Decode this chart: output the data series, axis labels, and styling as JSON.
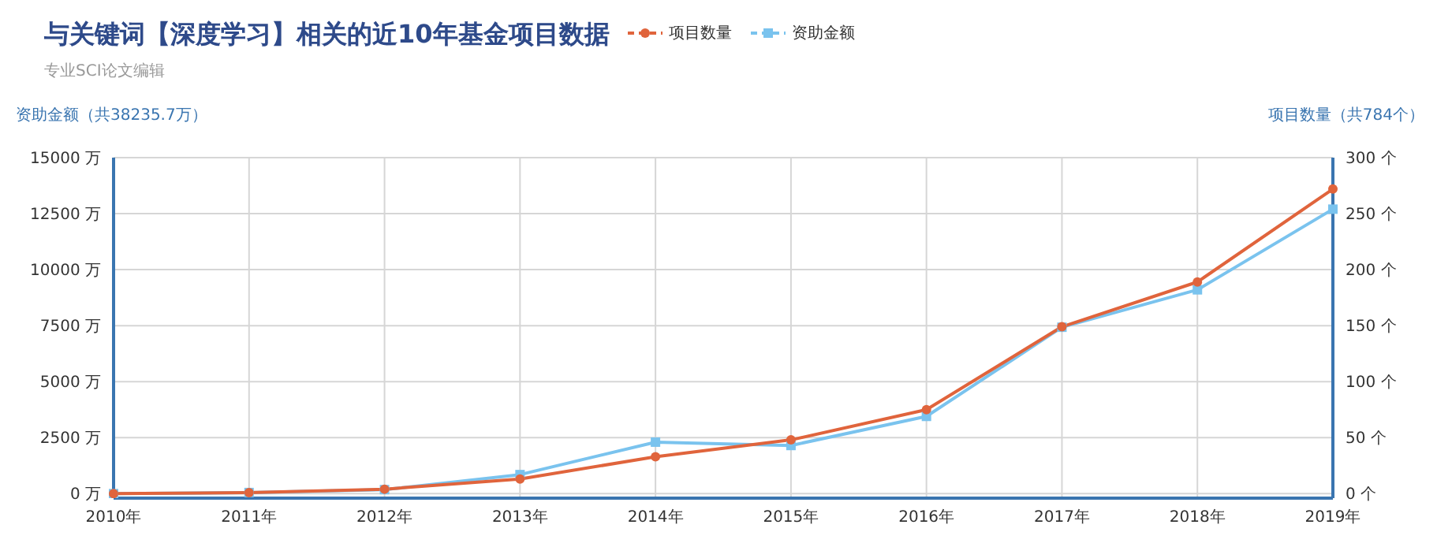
{
  "chart_data": {
    "type": "line",
    "title": "与关键词【深度学习】相关的近10年基金项目数据",
    "subtitle": "专业SCI论文编辑",
    "ylabel": "资助金额（共38235.7万）",
    "y2label": "项目数量（共784个）",
    "categories": [
      "2010年",
      "2011年",
      "2012年",
      "2013年",
      "2014年",
      "2015年",
      "2016年",
      "2017年",
      "2018年",
      "2019年"
    ],
    "series": [
      {
        "name": "项目数量",
        "color": "#e0643c",
        "axis": "y2",
        "marker": "circle",
        "values": [
          0,
          1,
          4,
          13,
          33,
          48,
          75,
          149,
          189,
          272
        ]
      },
      {
        "name": "资助金额",
        "color": "#7ac3ee",
        "marker": "square",
        "values": [
          0,
          50,
          180,
          850,
          2300,
          2150,
          3450,
          7430,
          9100,
          12700
        ]
      }
    ],
    "ylim": [
      -200,
      15000
    ],
    "yticks": [
      {
        "value": 0,
        "label": "0 万"
      },
      {
        "value": 2500,
        "label": "2500 万"
      },
      {
        "value": 5000,
        "label": "5000 万"
      },
      {
        "value": 7500,
        "label": "7500 万"
      },
      {
        "value": 10000,
        "label": "10000 万"
      },
      {
        "value": 12500,
        "label": "12500 万"
      },
      {
        "value": 15000,
        "label": "15000 万"
      }
    ],
    "y2lim": [
      -4,
      300
    ],
    "y2ticks": [
      {
        "value": 0,
        "label": "0 个"
      },
      {
        "value": 50,
        "label": "50 个"
      },
      {
        "value": 100,
        "label": "100 个"
      },
      {
        "value": 150,
        "label": "150 个"
      },
      {
        "value": 200,
        "label": "200 个"
      },
      {
        "value": 250,
        "label": "250 个"
      },
      {
        "value": 300,
        "label": "300 个"
      }
    ],
    "grid": true,
    "legend": "top",
    "line_style": "solid"
  }
}
